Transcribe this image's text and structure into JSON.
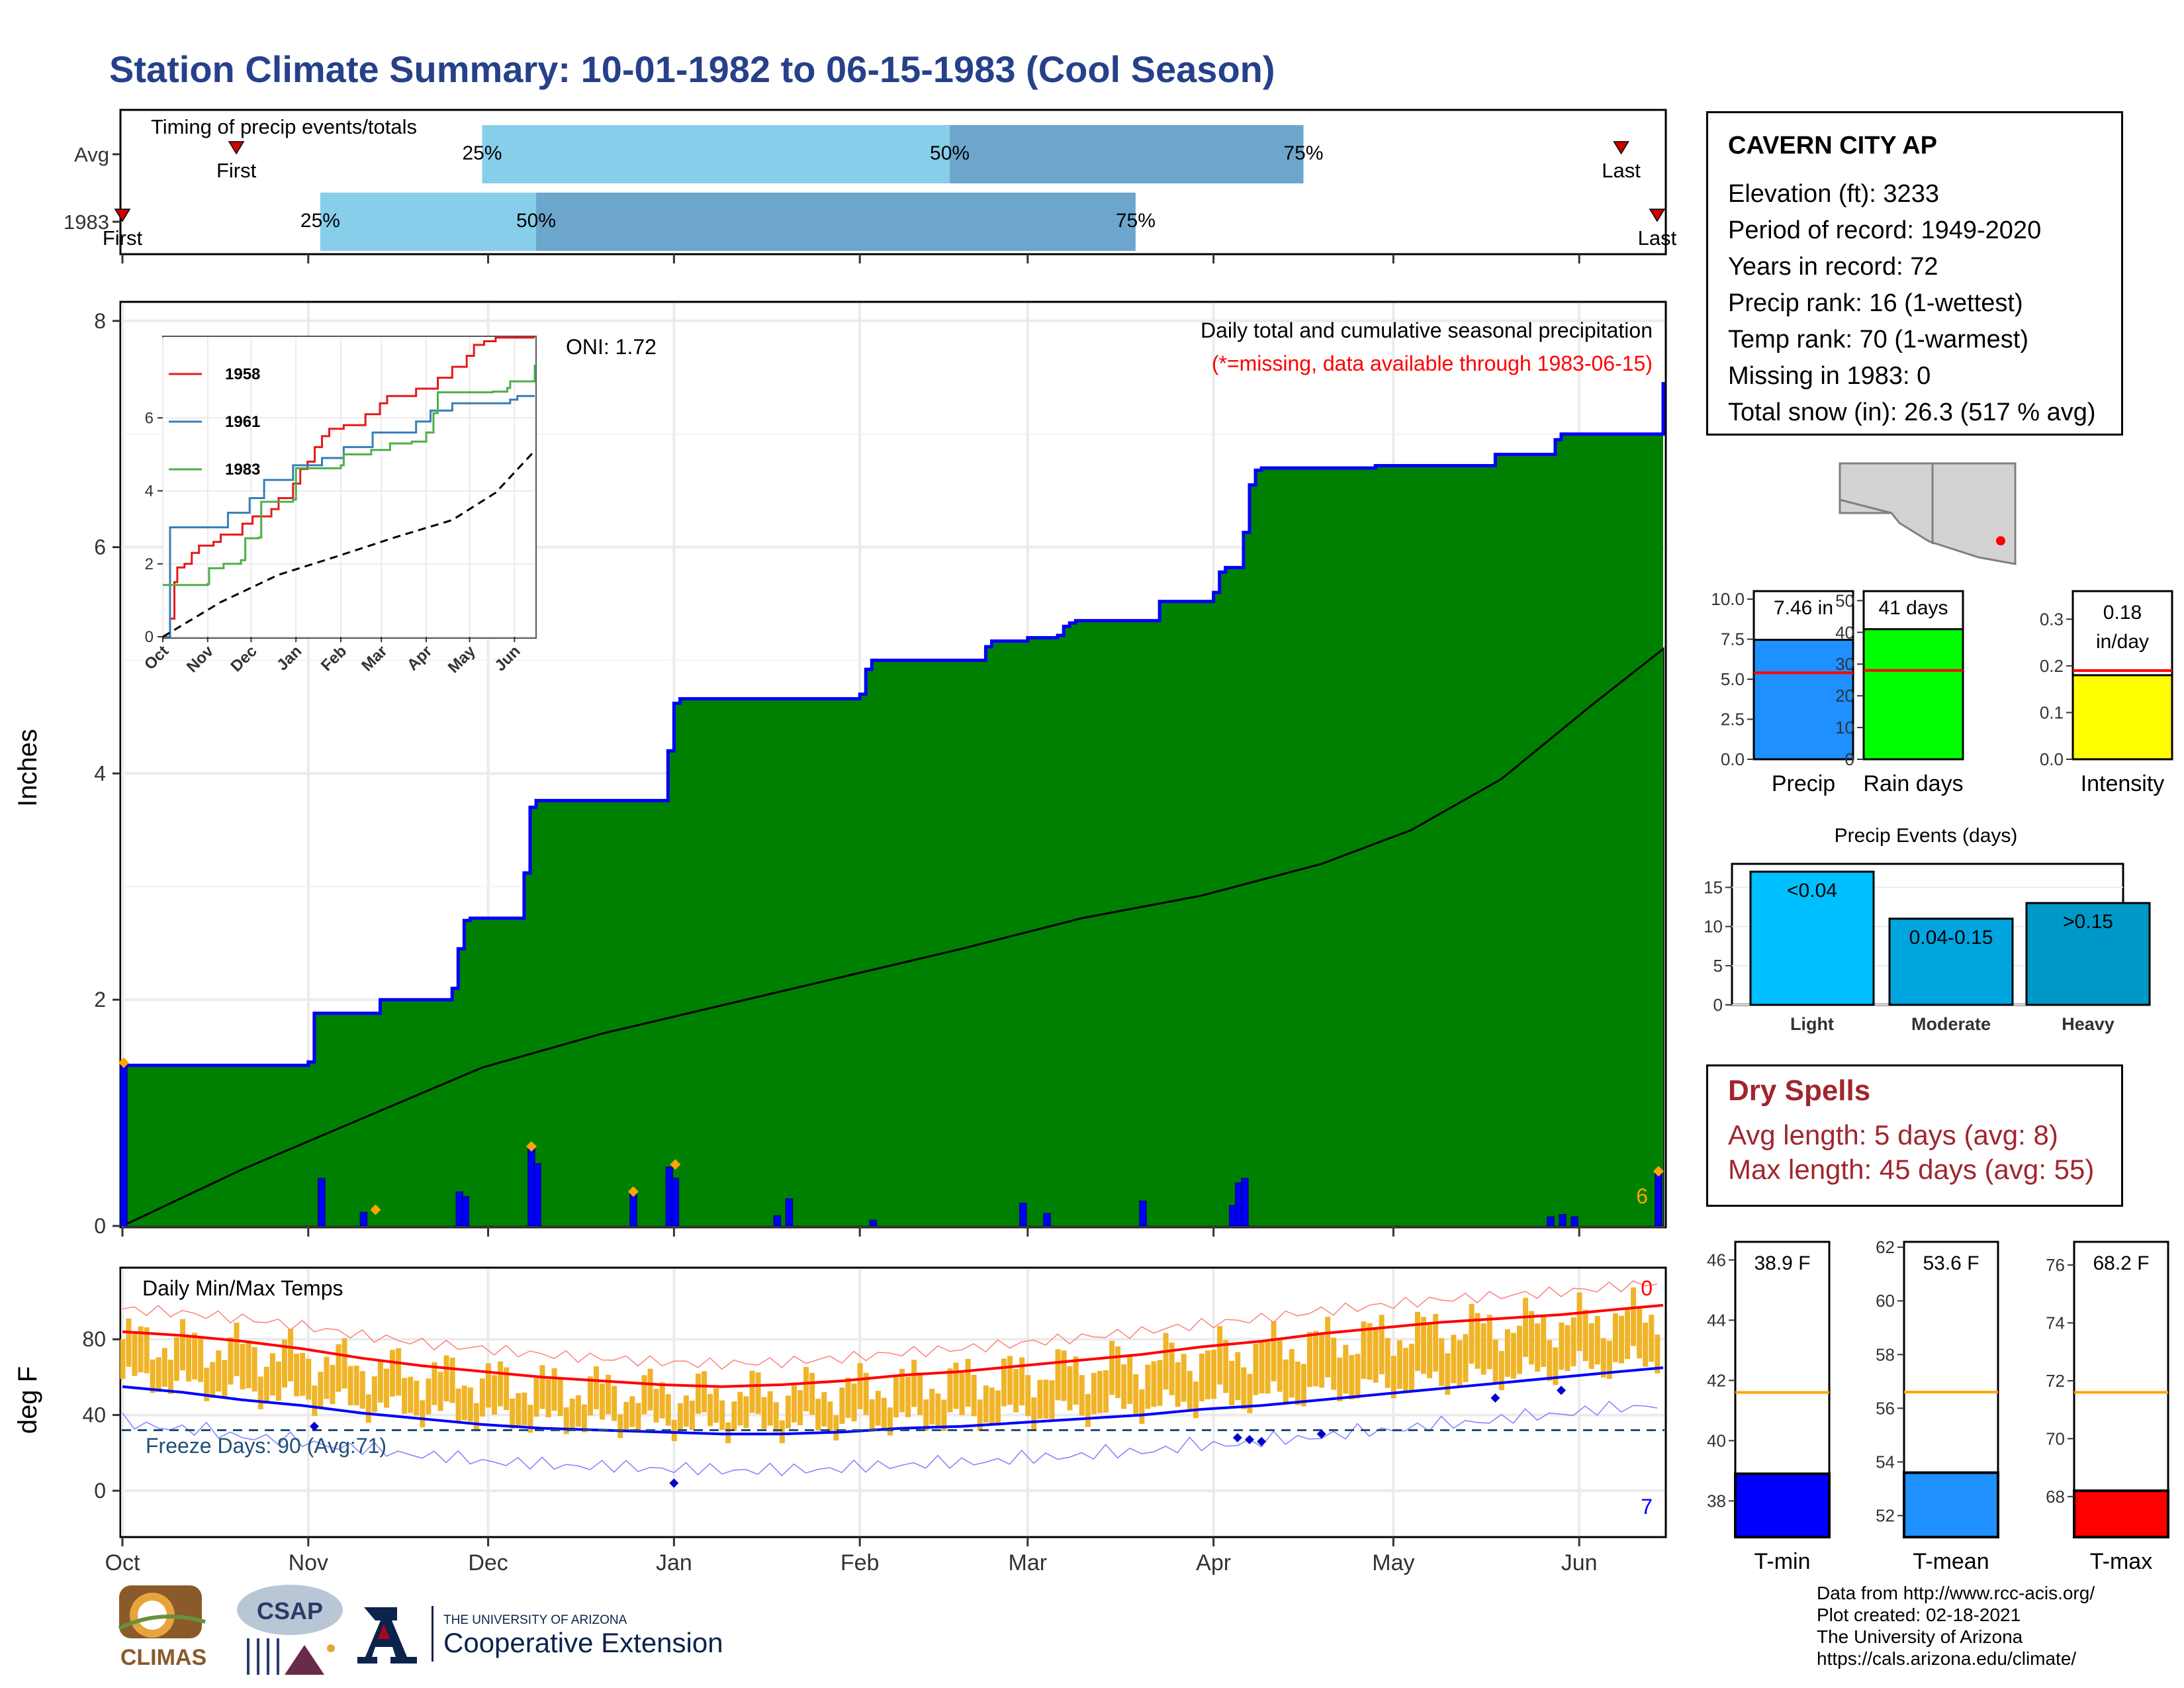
{
  "title": "Station Climate Summary: 10-01-1982 to 06-15-1983 (Cool Season)",
  "colors": {
    "title": "#26418a",
    "green": "#008000",
    "gray": "#e0e0e0",
    "blue": "#0000ff",
    "orange": "#ffa500",
    "temp_bar": "#f0b429",
    "red": "#ff0000",
    "lightblue": "#87ceeb",
    "midblue": "#6ca6cd",
    "freeze": "#1f4e79",
    "dryspell": "#a0262e"
  },
  "station": {
    "name": "CAVERN CITY AP",
    "lines": [
      "Elevation (ft): 3233",
      "Period of record: 1949-2020",
      "Years in record: 72",
      "Precip rank: 16 (1-wettest)",
      "Temp rank: 70 (1-warmest)",
      "Missing in 1983: 0",
      "Total snow (in): 26.3 (517 % avg)"
    ]
  },
  "timing": {
    "title": "Timing of precip events/totals",
    "rows": [
      {
        "label": "Avg",
        "first_label": "First",
        "last_label": "Last",
        "first": 19,
        "last": 250,
        "q25": 60,
        "q50": 138,
        "q75": 197,
        "q25_label": "25%",
        "q50_label": "50%",
        "q75_label": "75%"
      },
      {
        "label": "1983",
        "first_label": "First",
        "last_label": "Last",
        "first": 0,
        "last": 256,
        "q25": 33,
        "q50": 69,
        "q75": 169,
        "q25_label": "25%",
        "q50_label": "50%",
        "q75_label": "75%"
      }
    ]
  },
  "precip_panel": {
    "ylabel": "Inches",
    "header": "Daily total and cumulative seasonal precipitation",
    "subheader": "(*=missing, data available through 1983-06-15)",
    "oni": "ONI: 1.72",
    "corner_count": "6",
    "yticks": [
      "0",
      "2",
      "4",
      "6",
      "8"
    ]
  },
  "inset": {
    "legend": [
      "1958",
      "1961",
      "1983"
    ],
    "months": [
      "Oct",
      "Nov",
      "Dec",
      "Jan",
      "Feb",
      "Mar",
      "Apr",
      "May",
      "Jun"
    ],
    "yticks": [
      "0",
      "2",
      "4",
      "6"
    ]
  },
  "temp_panel": {
    "ylabel": "deg F",
    "header": "Daily Min/Max Temps",
    "freeze_label": "Freeze Days: 90 (Avg:71)",
    "top_count": "0",
    "bottom_count": "7",
    "yticks": [
      "0",
      "40",
      "80"
    ]
  },
  "months": [
    "Oct",
    "Nov",
    "Dec",
    "Jan",
    "Feb",
    "Mar",
    "Apr",
    "May",
    "Jun"
  ],
  "mini_bars": [
    {
      "xlabel": "Precip",
      "label": "7.46 in",
      "value": 7.46,
      "avg": 5.4,
      "ymax": 10.5,
      "color": "#1e90ff",
      "yticks": [
        "0.0",
        "2.5",
        "5.0",
        "7.5",
        "10.0"
      ]
    },
    {
      "xlabel": "Rain days",
      "label": "41 days",
      "value": 41,
      "avg": 28,
      "ymax": 53,
      "color": "#00ff00",
      "yticks": [
        "0",
        "10",
        "20",
        "30",
        "40",
        "50"
      ]
    },
    {
      "xlabel": "Intensity",
      "label": "0.18 in/day",
      "value": 0.18,
      "avg": 0.19,
      "ymax": 0.36,
      "color": "#ffff00",
      "yticks": [
        "0.0",
        "0.1",
        "0.2",
        "0.3"
      ]
    }
  ],
  "precip_events": {
    "title": "Precip Events (days)",
    "categories": [
      "Light",
      "Moderate",
      "Heavy"
    ],
    "labels": [
      "<0.04",
      "0.04-0.15",
      ">0.15"
    ],
    "values": [
      17,
      11,
      13
    ],
    "colors": [
      "#00bfff",
      "#00a5e0",
      "#0098c8"
    ],
    "yticks": [
      "0",
      "5",
      "10",
      "15"
    ]
  },
  "dry_spells": {
    "title": "Dry Spells",
    "avg_length": "Avg length: 5 days (avg: 8)",
    "max_length": "Max length: 45 days (avg: 55)"
  },
  "temp_bars": [
    {
      "xlabel": "T-min",
      "label": "38.9 F",
      "value": 38.9,
      "avg": 41.6,
      "ymin": 36.8,
      "ymax": 46.6,
      "color": "#0000ff",
      "ticks": [
        38,
        40,
        42,
        44,
        46
      ]
    },
    {
      "xlabel": "T-mean",
      "label": "53.6 F",
      "value": 53.6,
      "avg": 56.6,
      "ymin": 51.2,
      "ymax": 62.2,
      "color": "#1e90ff",
      "ticks": [
        52,
        54,
        56,
        58,
        60,
        62
      ]
    },
    {
      "xlabel": "T-max",
      "label": "68.2 F",
      "value": 68.2,
      "avg": 71.6,
      "ymin": 66.6,
      "ymax": 76.8,
      "color": "#ff0000",
      "ticks": [
        68,
        70,
        72,
        74,
        76
      ]
    }
  ],
  "credits": [
    "Data from http://www.rcc-acis.org/",
    "Plot created: 02-18-2021",
    "The University of Arizona",
    "https://cals.arizona.edu/climate/"
  ],
  "logos": {
    "climas": "CLIMAS",
    "csap": "CSAP",
    "ua_small": "THE UNIVERSITY OF ARIZONA",
    "ua_big": "Cooperative Extension"
  },
  "chart_data": {
    "type": "area",
    "title": "Daily total and cumulative seasonal precipitation",
    "ylabel": "Inches",
    "ylim": [
      0,
      8.2
    ],
    "x_range_days": [
      0,
      257
    ],
    "cumulative_1983": {
      "x": [
        0,
        1,
        31,
        32,
        42,
        43,
        54,
        55,
        56,
        57,
        58,
        66,
        67,
        68,
        69,
        70,
        90,
        91,
        92,
        93,
        103,
        104,
        123,
        124,
        125,
        126,
        144,
        145,
        150,
        151,
        152,
        153,
        156,
        157,
        158,
        159,
        172,
        173,
        180,
        181,
        182,
        183,
        184,
        187,
        188,
        189,
        190,
        193,
        194,
        195,
        209,
        210,
        228,
        229,
        238,
        239,
        240,
        256,
        257
      ],
      "y": [
        1.42,
        1.42,
        1.45,
        1.88,
        1.88,
        2.0,
        2.0,
        2.1,
        2.45,
        2.7,
        2.72,
        2.72,
        3.12,
        3.7,
        3.76,
        3.76,
        3.76,
        4.2,
        4.62,
        4.66,
        4.66,
        4.66,
        4.7,
        4.92,
        5.0,
        5.0,
        5.12,
        5.17,
        5.17,
        5.2,
        5.2,
        5.2,
        5.22,
        5.3,
        5.33,
        5.35,
        5.35,
        5.52,
        5.52,
        5.52,
        5.6,
        5.78,
        5.82,
        6.13,
        6.55,
        6.68,
        6.7,
        6.7,
        6.7,
        6.7,
        6.72,
        6.72,
        6.72,
        6.82,
        6.82,
        6.95,
        7.0,
        7.0,
        7.46
      ]
    },
    "average_cumulative": {
      "x": [
        0,
        20,
        40,
        60,
        80,
        100,
        120,
        140,
        160,
        180,
        200,
        215,
        230,
        245,
        257
      ],
      "y": [
        0.0,
        0.5,
        0.95,
        1.4,
        1.7,
        1.95,
        2.2,
        2.45,
        2.72,
        2.92,
        3.2,
        3.5,
        3.95,
        4.6,
        5.1
      ]
    },
    "daily_1983": {
      "x": [
        0,
        33,
        40,
        56,
        57,
        68,
        69,
        85,
        91,
        92,
        109,
        111,
        125,
        150,
        154,
        170,
        185,
        186,
        187,
        238,
        240,
        242,
        256
      ],
      "y": [
        1.42,
        0.42,
        0.12,
        0.3,
        0.26,
        0.68,
        0.55,
        0.28,
        0.52,
        0.42,
        0.09,
        0.24,
        0.05,
        0.2,
        0.11,
        0.22,
        0.18,
        0.38,
        0.42,
        0.08,
        0.1,
        0.08,
        0.46
      ]
    },
    "inset": {
      "type": "line",
      "ylim": [
        0,
        8.2
      ],
      "series": [
        {
          "name": "1958",
          "color": "#e41a1c",
          "x": [
            0,
            5,
            8,
            10,
            15,
            20,
            25,
            35,
            40,
            55,
            62,
            75,
            80,
            90,
            95,
            100,
            105,
            110,
            115,
            125,
            140,
            150,
            155,
            175,
            190,
            200,
            210,
            215,
            222,
            230,
            257
          ],
          "y": [
            0,
            0.5,
            1.5,
            1.9,
            2.0,
            2.3,
            2.5,
            2.6,
            2.8,
            3.1,
            3.3,
            3.5,
            3.8,
            4.2,
            4.6,
            4.8,
            5.2,
            5.5,
            5.7,
            5.8,
            6.1,
            6.4,
            6.6,
            6.8,
            7.1,
            7.4,
            7.7,
            8.0,
            8.1,
            8.2,
            8.2
          ]
        },
        {
          "name": "1961",
          "color": "#377eb8",
          "x": [
            0,
            5,
            25,
            45,
            55,
            60,
            70,
            90,
            110,
            125,
            145,
            175,
            185,
            200,
            240,
            245,
            257
          ],
          "y": [
            0,
            3.0,
            3.0,
            3.4,
            3.4,
            3.8,
            4.3,
            4.7,
            4.9,
            5.2,
            5.6,
            5.9,
            6.2,
            6.4,
            6.5,
            6.6,
            6.6
          ]
        },
        {
          "name": "1983",
          "color": "#4daf4a",
          "x": [
            0,
            1,
            31,
            32,
            42,
            54,
            57,
            66,
            68,
            90,
            92,
            123,
            125,
            144,
            157,
            172,
            182,
            187,
            190,
            228,
            238,
            240,
            257
          ],
          "y": [
            1.42,
            1.42,
            1.45,
            1.88,
            2.0,
            2.1,
            2.7,
            2.72,
            3.7,
            3.76,
            4.62,
            4.7,
            5.0,
            5.12,
            5.3,
            5.35,
            5.6,
            6.13,
            6.7,
            6.72,
            6.82,
            7.0,
            7.46
          ]
        },
        {
          "name": "Average",
          "color": "#000000",
          "x": [
            0,
            40,
            80,
            120,
            160,
            200,
            230,
            257
          ],
          "y": [
            0,
            0.95,
            1.7,
            2.2,
            2.72,
            3.2,
            3.95,
            5.1
          ]
        }
      ]
    },
    "temperatures": {
      "type": "line",
      "ylabel": "deg F",
      "ylim": [
        -25,
        113
      ],
      "freeze_line": 32,
      "avg_max": {
        "x": [
          0,
          10,
          20,
          30,
          40,
          50,
          60,
          70,
          80,
          90,
          100,
          110,
          120,
          130,
          140,
          150,
          160,
          170,
          180,
          190,
          200,
          210,
          220,
          230,
          240,
          250,
          257
        ],
        "y": [
          84,
          82,
          79,
          75,
          70,
          66,
          63,
          60,
          58,
          56,
          55,
          56,
          58,
          61,
          63,
          66,
          69,
          72,
          76,
          79,
          83,
          86,
          89,
          91,
          93,
          96,
          98
        ]
      },
      "avg_min": {
        "x": [
          0,
          10,
          20,
          30,
          40,
          50,
          60,
          70,
          80,
          90,
          100,
          110,
          120,
          130,
          140,
          150,
          160,
          170,
          180,
          190,
          200,
          210,
          220,
          230,
          240,
          250,
          257
        ],
        "y": [
          55,
          52,
          48,
          45,
          41,
          38,
          35,
          33,
          32,
          31,
          30,
          30,
          31,
          33,
          34,
          36,
          38,
          40,
          43,
          45,
          48,
          51,
          54,
          57,
          60,
          63,
          65
        ]
      }
    }
  }
}
